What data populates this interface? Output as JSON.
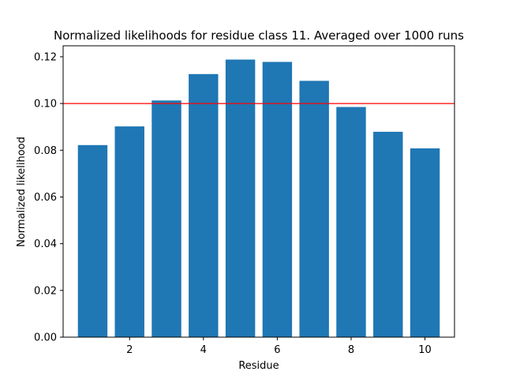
{
  "chart_data": {
    "type": "bar",
    "title": "Normalized likelihoods for residue class 11. Averaged over 1000 runs",
    "xlabel": "Residue",
    "ylabel": "Normalized likelihood",
    "categories": [
      1,
      2,
      3,
      4,
      5,
      6,
      7,
      8,
      9,
      10
    ],
    "values": [
      0.0822,
      0.0902,
      0.1013,
      0.1126,
      0.1188,
      0.1178,
      0.1097,
      0.0985,
      0.0879,
      0.0808
    ],
    "reference_line": {
      "y": 0.1,
      "color": "#ff0000"
    },
    "xlim": [
      0.2,
      10.8
    ],
    "ylim": [
      0,
      0.1247
    ],
    "xticks": [
      2,
      4,
      6,
      8,
      10
    ],
    "yticks": [
      "0.00",
      "0.02",
      "0.04",
      "0.06",
      "0.08",
      "0.10",
      "0.12"
    ],
    "bar_color": "#1f77b4",
    "grid": false,
    "legend": "none"
  }
}
